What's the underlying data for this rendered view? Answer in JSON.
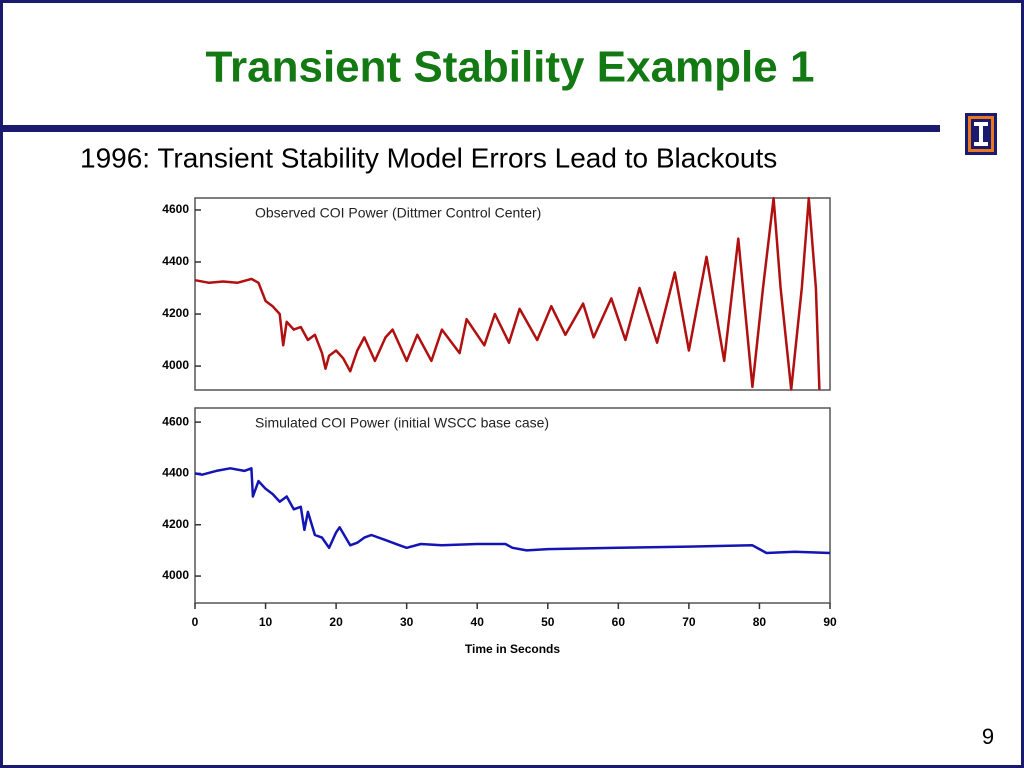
{
  "slide": {
    "title": "Transient Stability Example 1",
    "subtitle": "1996: Transient Stability Model Errors Lead to Blackouts",
    "page_number": "9"
  },
  "chart_data": [
    {
      "type": "line",
      "annotation": "Observed COI Power (Dittmer Control Center)",
      "color": "#b01010",
      "xlim": [
        0,
        90
      ],
      "ylim": [
        3908,
        4646
      ],
      "yticks": [
        4000,
        4200,
        4400,
        4600
      ],
      "x": [
        0,
        2,
        4,
        6,
        8,
        9,
        10,
        11,
        12,
        12.5,
        13,
        14,
        15,
        16,
        17,
        18,
        18.5,
        19,
        20,
        21,
        22,
        23,
        24,
        25.5,
        27,
        28,
        30,
        31.5,
        33.5,
        35,
        37.5,
        38.5,
        41,
        42.5,
        44.5,
        46,
        48.5,
        50.5,
        52.5,
        55,
        56.5,
        59,
        61,
        63,
        65.5,
        68,
        70,
        72.5,
        75,
        77,
        79,
        80.5,
        82,
        83,
        84.5,
        86,
        87,
        88,
        88.5
      ],
      "values": [
        4330,
        4320,
        4325,
        4320,
        4335,
        4320,
        4250,
        4230,
        4200,
        4080,
        4170,
        4140,
        4150,
        4100,
        4120,
        4050,
        3990,
        4040,
        4060,
        4030,
        3980,
        4060,
        4110,
        4020,
        4110,
        4140,
        4020,
        4120,
        4020,
        4140,
        4050,
        4180,
        4080,
        4200,
        4090,
        4220,
        4100,
        4230,
        4120,
        4240,
        4110,
        4260,
        4100,
        4300,
        4090,
        4360,
        4060,
        4420,
        4020,
        4490,
        3920,
        4300,
        4645,
        4300,
        3910,
        4300,
        4645,
        4300,
        3910
      ]
    },
    {
      "type": "line",
      "annotation": "Simulated COI Power (initial WSCC base case)",
      "color": "#1414b4",
      "xlabel": "Time in Seconds",
      "xlim": [
        0,
        90
      ],
      "xticks": [
        0,
        10,
        20,
        30,
        40,
        50,
        60,
        70,
        80,
        90
      ],
      "ylim": [
        3895,
        4655
      ],
      "yticks": [
        4000,
        4200,
        4400,
        4600
      ],
      "x": [
        0,
        1,
        3,
        5,
        7,
        8,
        8.2,
        9,
        10,
        11,
        12,
        13,
        14,
        15,
        15.5,
        16,
        17,
        18,
        19,
        20,
        20.5,
        22,
        23,
        24,
        25,
        27,
        29,
        30,
        32,
        35,
        40,
        44,
        45,
        47,
        50,
        60,
        70,
        79,
        80,
        81,
        85,
        90
      ],
      "values": [
        4400,
        4395,
        4410,
        4420,
        4410,
        4420,
        4310,
        4370,
        4340,
        4320,
        4290,
        4310,
        4260,
        4270,
        4180,
        4250,
        4160,
        4150,
        4110,
        4170,
        4190,
        4120,
        4130,
        4150,
        4160,
        4140,
        4120,
        4110,
        4125,
        4120,
        4125,
        4125,
        4110,
        4100,
        4105,
        4110,
        4115,
        4120,
        4105,
        4090,
        4095,
        4090
      ]
    }
  ]
}
